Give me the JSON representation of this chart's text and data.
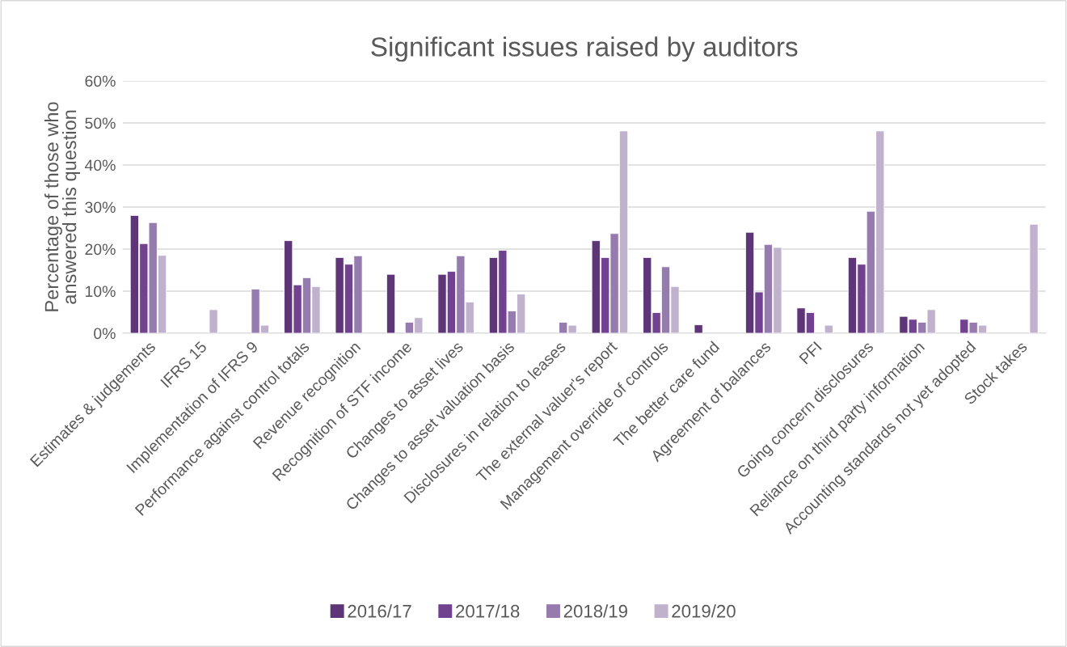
{
  "chart_data": {
    "type": "bar",
    "title": "Significant issues raised by auditors",
    "ylabel": "Percentage of those who\nanswered this question",
    "categories": [
      "Estimates & judgements",
      "IFRS 15",
      "Implementation of IFRS 9",
      "Performance against control totals",
      "Revenue recognition",
      "Recognition of STF income",
      "Changes to asset lives",
      "Changes to asset valuation basis",
      "Disclosures in relation to leases",
      "The external valuer's report",
      "Management override of controls",
      "The better care fund",
      "Agreement of balances",
      "PFI",
      "Going concern disclosures",
      "Reliance on third party information",
      "Accounting standards not yet adopted",
      "Stock takes"
    ],
    "series": [
      {
        "name": "2016/17",
        "color": "#5e3577",
        "values": [
          28,
          0,
          0,
          22,
          18,
          14,
          14,
          18,
          0,
          22,
          18,
          2,
          24,
          6,
          18,
          4,
          0,
          0
        ]
      },
      {
        "name": "2017/18",
        "color": "#714290",
        "values": [
          21.3,
          0,
          0,
          11.5,
          16.4,
          0,
          14.7,
          19.7,
          0,
          18,
          4.9,
          0,
          9.8,
          4.9,
          16.4,
          3.3,
          3.3,
          0
        ]
      },
      {
        "name": "2018/19",
        "color": "#967bae",
        "values": [
          26.3,
          0,
          10.5,
          13.2,
          18.4,
          2.6,
          18.4,
          5.3,
          2.6,
          23.7,
          15.8,
          0,
          21.1,
          0,
          29,
          2.6,
          2.6,
          0
        ]
      },
      {
        "name": "2019/20",
        "color": "#c0b2cd",
        "values": [
          18.5,
          5.6,
          1.9,
          11.1,
          0,
          3.7,
          7.4,
          9.3,
          1.9,
          48.1,
          11.1,
          0,
          20.4,
          1.9,
          48.1,
          5.6,
          1.9,
          25.9
        ]
      }
    ],
    "ylim": [
      0,
      60
    ],
    "yticks": [
      {
        "value": 0,
        "label": "0%"
      },
      {
        "value": 10,
        "label": "10%"
      },
      {
        "value": 20,
        "label": "20%"
      },
      {
        "value": 30,
        "label": "30%"
      },
      {
        "value": 40,
        "label": "40%"
      },
      {
        "value": 50,
        "label": "50%"
      },
      {
        "value": 60,
        "label": "60%"
      }
    ],
    "grid": "y",
    "legend": "bottom"
  }
}
